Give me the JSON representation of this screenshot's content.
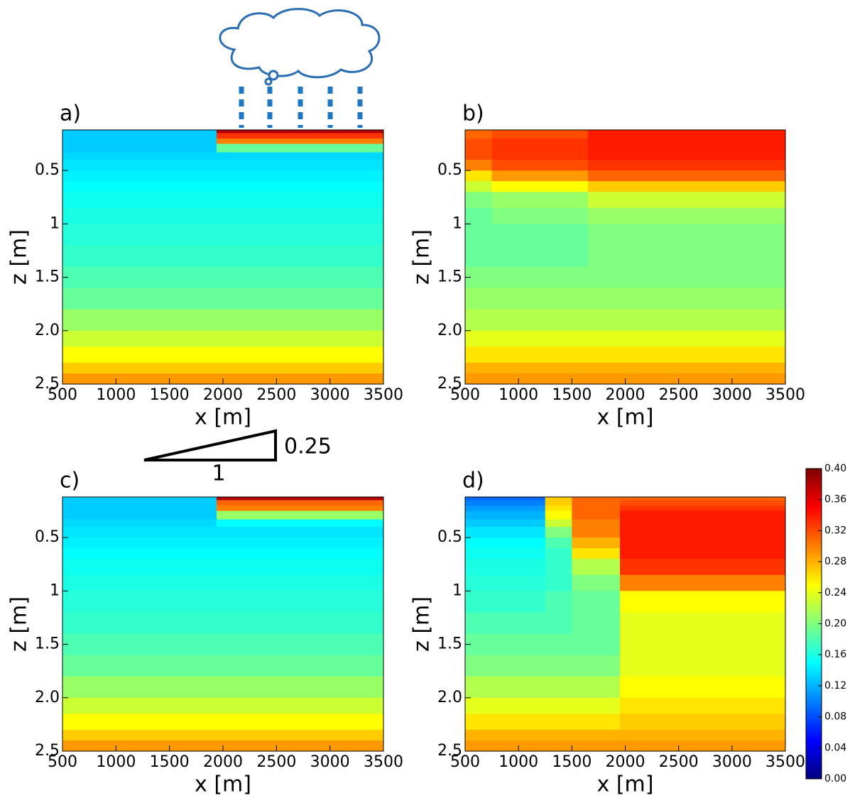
{
  "chart_data": [
    {
      "type": "heatmap",
      "panel_label": "a)",
      "xlabel": "x [m]",
      "ylabel": "z [m]",
      "xlim": [
        500,
        3500
      ],
      "xticks": [
        500,
        1000,
        1500,
        2000,
        2500,
        3000,
        3500
      ],
      "ylim": [
        0.12,
        2.5
      ],
      "y_inverted": true,
      "yticks": [
        0.5,
        1,
        1.5,
        {
          "value": 2,
          "label": "2.0"
        },
        2.5
      ],
      "colormap": "jet",
      "clim": [
        0,
        0.4
      ],
      "x_edges": [
        500,
        1940,
        3500
      ],
      "z_edges": [
        0.12,
        0.15,
        0.2,
        0.25,
        0.33,
        0.4,
        0.5,
        0.6,
        0.7,
        0.85,
        1.0,
        1.2,
        1.4,
        1.6,
        1.8,
        2.0,
        2.15,
        2.3,
        2.4,
        2.5
      ],
      "values": [
        [
          0.13,
          0.38
        ],
        [
          0.13,
          0.33
        ],
        [
          0.13,
          0.3
        ],
        [
          0.13,
          0.19
        ],
        [
          0.135,
          0.135
        ],
        [
          0.14,
          0.14
        ],
        [
          0.145,
          0.145
        ],
        [
          0.15,
          0.15
        ],
        [
          0.155,
          0.155
        ],
        [
          0.16,
          0.16
        ],
        [
          0.165,
          0.165
        ],
        [
          0.17,
          0.17
        ],
        [
          0.18,
          0.18
        ],
        [
          0.19,
          0.19
        ],
        [
          0.21,
          0.21
        ],
        [
          0.23,
          0.23
        ],
        [
          0.25,
          0.25
        ],
        [
          0.27,
          0.27
        ],
        [
          0.29,
          0.29
        ]
      ]
    },
    {
      "type": "heatmap",
      "panel_label": "b)",
      "xlabel": "x [m]",
      "ylabel": "z [m]",
      "xlim": [
        500,
        3500
      ],
      "xticks": [
        500,
        1000,
        1500,
        2000,
        2500,
        3000,
        3500
      ],
      "ylim": [
        0.12,
        2.5
      ],
      "y_inverted": true,
      "yticks": [
        0.5,
        1,
        1.5,
        {
          "value": 2,
          "label": "2.0"
        },
        2.5
      ],
      "colormap": "jet",
      "clim": [
        0,
        0.4
      ],
      "x_edges": [
        500,
        750,
        1650,
        3500
      ],
      "z_edges": [
        0.12,
        0.15,
        0.2,
        0.25,
        0.33,
        0.4,
        0.5,
        0.6,
        0.7,
        0.85,
        1.0,
        1.2,
        1.4,
        1.6,
        1.8,
        2.0,
        2.15,
        2.3,
        2.4,
        2.5
      ],
      "values": [
        [
          0.31,
          0.32,
          0.34
        ],
        [
          0.31,
          0.32,
          0.34
        ],
        [
          0.32,
          0.33,
          0.34
        ],
        [
          0.32,
          0.33,
          0.34
        ],
        [
          0.32,
          0.33,
          0.34
        ],
        [
          0.3,
          0.32,
          0.33
        ],
        [
          0.26,
          0.29,
          0.31
        ],
        [
          0.23,
          0.25,
          0.27
        ],
        [
          0.2,
          0.21,
          0.23
        ],
        [
          0.19,
          0.2,
          0.21
        ],
        [
          0.19,
          0.19,
          0.2
        ],
        [
          0.19,
          0.19,
          0.2
        ],
        [
          0.2,
          0.2,
          0.2
        ],
        [
          0.21,
          0.21,
          0.21
        ],
        [
          0.22,
          0.22,
          0.22
        ],
        [
          0.24,
          0.24,
          0.24
        ],
        [
          0.26,
          0.26,
          0.26
        ],
        [
          0.28,
          0.28,
          0.28
        ],
        [
          0.29,
          0.29,
          0.29
        ]
      ]
    },
    {
      "type": "heatmap",
      "panel_label": "c)",
      "xlabel": "x [m]",
      "ylabel": "z [m]",
      "xlim": [
        500,
        3500
      ],
      "xticks": [
        500,
        1000,
        1500,
        2000,
        2500,
        3000,
        3500
      ],
      "ylim": [
        0.12,
        2.5
      ],
      "y_inverted": true,
      "yticks": [
        0.5,
        1,
        1.5,
        {
          "value": 2,
          "label": "2.0"
        },
        2.5
      ],
      "colormap": "jet",
      "clim": [
        0,
        0.4
      ],
      "x_edges": [
        500,
        1940,
        3500
      ],
      "z_edges": [
        0.12,
        0.15,
        0.2,
        0.25,
        0.33,
        0.4,
        0.5,
        0.6,
        0.7,
        0.85,
        1.0,
        1.2,
        1.4,
        1.6,
        1.8,
        2.0,
        2.15,
        2.3,
        2.4,
        2.5
      ],
      "values": [
        [
          0.13,
          0.38
        ],
        [
          0.13,
          0.31
        ],
        [
          0.13,
          0.3
        ],
        [
          0.13,
          0.21
        ],
        [
          0.135,
          0.15
        ],
        [
          0.14,
          0.14
        ],
        [
          0.145,
          0.145
        ],
        [
          0.15,
          0.15
        ],
        [
          0.155,
          0.155
        ],
        [
          0.16,
          0.16
        ],
        [
          0.165,
          0.165
        ],
        [
          0.17,
          0.17
        ],
        [
          0.18,
          0.18
        ],
        [
          0.19,
          0.19
        ],
        [
          0.21,
          0.21
        ],
        [
          0.23,
          0.23
        ],
        [
          0.25,
          0.25
        ],
        [
          0.27,
          0.27
        ],
        [
          0.29,
          0.29
        ]
      ]
    },
    {
      "type": "heatmap",
      "panel_label": "d)",
      "xlabel": "x [m]",
      "ylabel": "z [m]",
      "xlim": [
        500,
        3500
      ],
      "xticks": [
        500,
        1000,
        1500,
        2000,
        2500,
        3000,
        3500
      ],
      "ylim": [
        0.12,
        2.5
      ],
      "y_inverted": true,
      "yticks": [
        0.5,
        1,
        1.5,
        {
          "value": 2,
          "label": "2.0"
        },
        2.5
      ],
      "colormap": "jet",
      "clim": [
        0,
        0.4
      ],
      "x_edges": [
        500,
        1250,
        1500,
        1950,
        3500
      ],
      "z_edges": [
        0.12,
        0.15,
        0.2,
        0.25,
        0.33,
        0.4,
        0.5,
        0.6,
        0.7,
        0.85,
        1.0,
        1.2,
        1.4,
        1.6,
        1.8,
        2.0,
        2.15,
        2.3,
        2.4,
        2.5
      ],
      "values": [
        [
          0.09,
          0.27,
          0.31,
          0.31
        ],
        [
          0.1,
          0.27,
          0.31,
          0.32
        ],
        [
          0.11,
          0.26,
          0.31,
          0.33
        ],
        [
          0.12,
          0.25,
          0.31,
          0.34
        ],
        [
          0.13,
          0.23,
          0.3,
          0.34
        ],
        [
          0.14,
          0.2,
          0.3,
          0.34
        ],
        [
          0.15,
          0.18,
          0.28,
          0.34
        ],
        [
          0.155,
          0.17,
          0.26,
          0.34
        ],
        [
          0.16,
          0.17,
          0.22,
          0.33
        ],
        [
          0.165,
          0.17,
          0.2,
          0.3
        ],
        [
          0.17,
          0.18,
          0.19,
          0.25
        ],
        [
          0.18,
          0.18,
          0.19,
          0.24
        ],
        [
          0.19,
          0.19,
          0.19,
          0.24
        ],
        [
          0.2,
          0.2,
          0.2,
          0.24
        ],
        [
          0.22,
          0.22,
          0.22,
          0.25
        ],
        [
          0.24,
          0.24,
          0.24,
          0.26
        ],
        [
          0.26,
          0.26,
          0.26,
          0.27
        ],
        [
          0.28,
          0.28,
          0.28,
          0.28
        ],
        [
          0.29,
          0.29,
          0.29,
          0.29
        ]
      ],
      "colorbar": true,
      "cticks": [
        {
          "value": 0,
          "label": "0.00"
        },
        {
          "value": 0.04,
          "label": "0.04"
        },
        {
          "value": 0.08,
          "label": "0.08"
        },
        {
          "value": 0.12,
          "label": "0.12"
        },
        {
          "value": 0.16,
          "label": "0.16"
        },
        {
          "value": 0.2,
          "label": "0.20"
        },
        {
          "value": 0.24,
          "label": "0.24"
        },
        {
          "value": 0.28,
          "label": "0.28"
        },
        {
          "value": 0.32,
          "label": "0.32"
        },
        {
          "value": 0.36,
          "label": "0.36"
        },
        {
          "value": 0.4,
          "label": "0.40"
        }
      ]
    }
  ],
  "annotation": {
    "slope_rise": "0.25",
    "slope_run": "1"
  }
}
